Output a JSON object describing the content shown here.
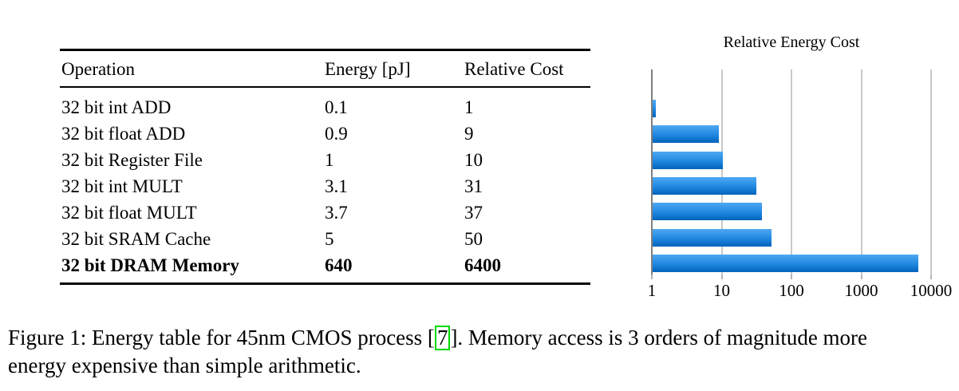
{
  "table": {
    "columns": [
      "Operation",
      "Energy [pJ]",
      "Relative Cost"
    ],
    "rows": [
      {
        "operation": "32 bit int ADD",
        "energy": "0.1",
        "relative_cost": "1",
        "bold": false
      },
      {
        "operation": "32 bit float ADD",
        "energy": "0.9",
        "relative_cost": "9",
        "bold": false
      },
      {
        "operation": "32 bit Register File",
        "energy": "1",
        "relative_cost": "10",
        "bold": false
      },
      {
        "operation": "32 bit int MULT",
        "energy": "3.1",
        "relative_cost": "31",
        "bold": false
      },
      {
        "operation": "32 bit float MULT",
        "energy": "3.7",
        "relative_cost": "37",
        "bold": false
      },
      {
        "operation": "32 bit SRAM Cache",
        "energy": "5",
        "relative_cost": "50",
        "bold": false
      },
      {
        "operation": "32 bit DRAM Memory",
        "energy": "640",
        "relative_cost": "6400",
        "bold": true
      }
    ]
  },
  "chart_data": {
    "type": "bar",
    "orientation": "horizontal",
    "title": "Relative Energy Cost",
    "categories": [
      "32 bit int ADD",
      "32 bit float ADD",
      "32 bit Register File",
      "32 bit int MULT",
      "32 bit float MULT",
      "32 bit SRAM Cache",
      "32 bit DRAM Memory"
    ],
    "values": [
      1,
      9,
      10,
      31,
      37,
      50,
      6400
    ],
    "xlabel": "",
    "ylabel": "",
    "x_scale": "log",
    "xlim": [
      1,
      10000
    ],
    "x_ticks": [
      "1",
      "10",
      "100",
      "1000",
      "10000"
    ],
    "grid": true,
    "legend": false,
    "bar_color_top": "#4fa8f2",
    "bar_color_mid": "#1f87e0",
    "bar_color_bottom": "#0363ba",
    "gridline_color": "#c9c9c9",
    "axis_color": "#7f7f7f"
  },
  "caption": {
    "prefix": "Figure 1: Energy table for 45nm CMOS process [",
    "citation": "7",
    "suffix": "]. Memory access is 3 orders of magnitude more",
    "line2": "energy expensive than simple arithmetic."
  }
}
